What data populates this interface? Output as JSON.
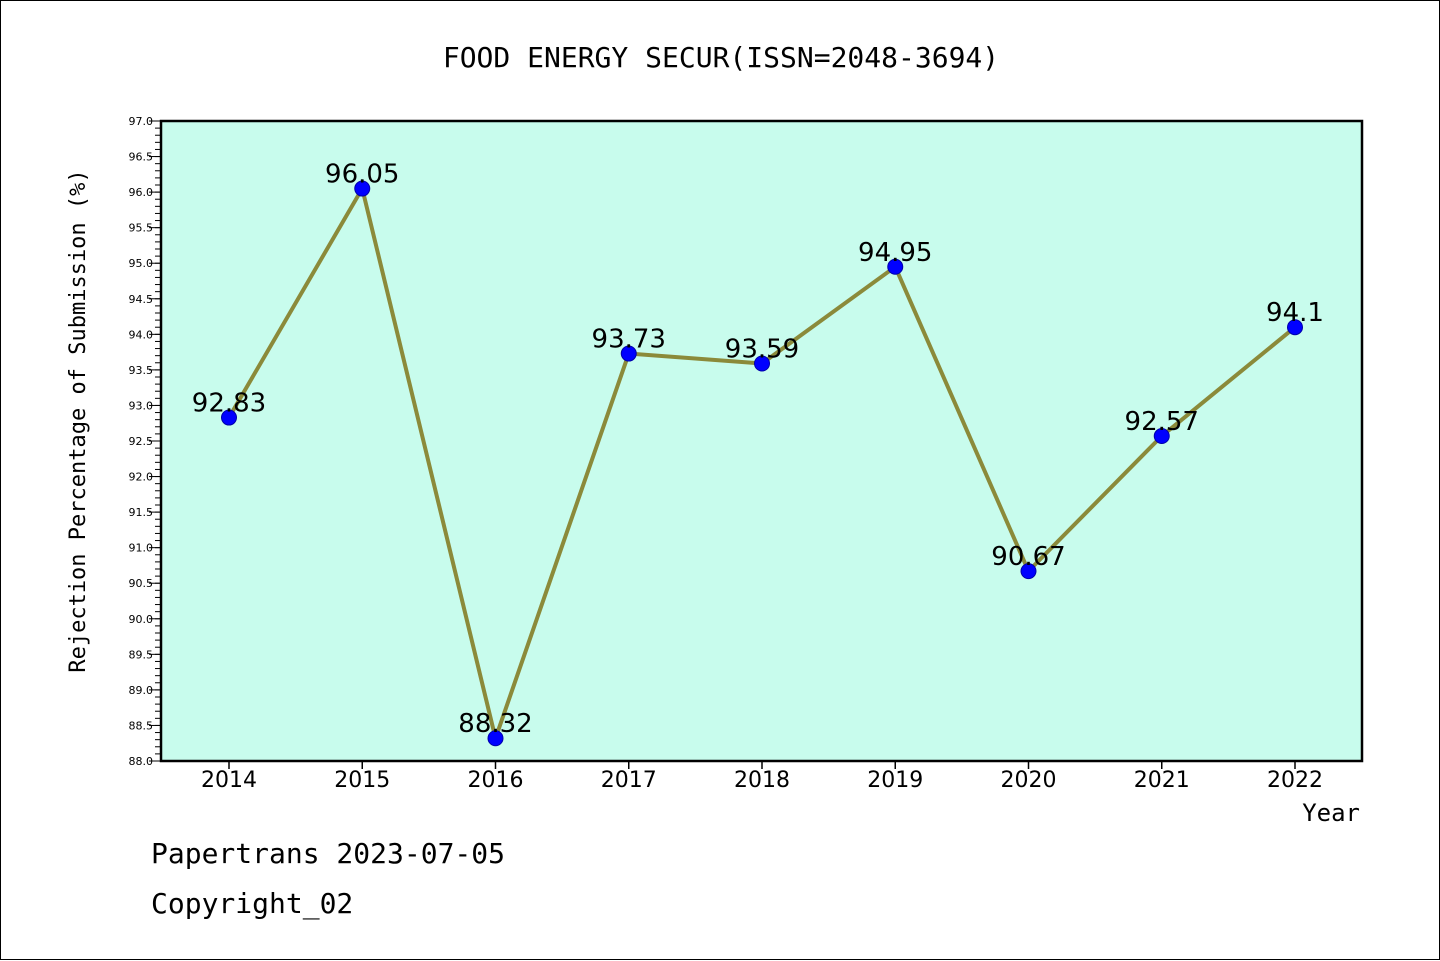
{
  "chart_data": {
    "type": "line",
    "title": "FOOD ENERGY SECUR(ISSN=2048-3694)",
    "xlabel": "Year",
    "ylabel": "Rejection Percentage of Submission (%)",
    "categories": [
      "2014",
      "2015",
      "2016",
      "2017",
      "2018",
      "2019",
      "2020",
      "2021",
      "2022"
    ],
    "series": [
      {
        "values": [
          92.83,
          96.05,
          88.32,
          93.73,
          93.59,
          94.95,
          90.67,
          92.57,
          94.1
        ],
        "labels": [
          "92.83",
          "96.05",
          "88.32",
          "93.73",
          "93.59",
          "94.95",
          "90.67",
          "92.57",
          "94.1"
        ],
        "line_color": "#8b8a3a",
        "marker_color": "#0000ff"
      }
    ],
    "ylim": [
      88.0,
      97.0
    ],
    "yticks": [
      "88.0",
      "88.5",
      "89.0",
      "89.5",
      "90.0",
      "90.5",
      "91.0",
      "91.5",
      "92.0",
      "92.5",
      "93.0",
      "93.5",
      "94.0",
      "94.5",
      "95.0",
      "95.5",
      "96.0",
      "96.5",
      "97.0"
    ],
    "plot_background": "#c8fced",
    "grid": false,
    "legend": "none"
  },
  "footer": {
    "line1": "Papertrans 2023-07-05",
    "line2": "Copyright_02"
  }
}
